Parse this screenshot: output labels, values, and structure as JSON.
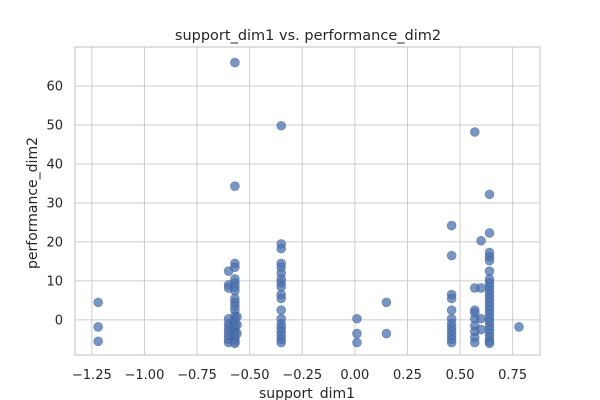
{
  "chart_data": {
    "type": "scatter",
    "title": "support_dim1 vs. performance_dim2",
    "xlabel": "support_dim1",
    "ylabel": "performance_dim2",
    "xlim": [
      -1.33,
      0.88
    ],
    "ylim": [
      -9,
      70
    ],
    "x_ticks": [
      -1.25,
      -1.0,
      -0.75,
      -0.5,
      -0.25,
      0.0,
      0.25,
      0.5,
      0.75
    ],
    "x_tick_labels": [
      "−1.25",
      "−1.00",
      "−0.75",
      "−0.50",
      "−0.25",
      "0.00",
      "0.25",
      "0.50",
      "0.75"
    ],
    "y_ticks": [
      0,
      10,
      20,
      30,
      40,
      50,
      60
    ],
    "y_tick_labels": [
      "0",
      "10",
      "20",
      "30",
      "40",
      "50",
      "60"
    ],
    "grid": true,
    "color": "#4c72b0",
    "points": [
      [
        -1.22,
        4.5
      ],
      [
        -1.22,
        -1.8
      ],
      [
        -1.22,
        -5.5
      ],
      [
        -0.6,
        12.5
      ],
      [
        -0.6,
        9.0
      ],
      [
        -0.6,
        8.2
      ],
      [
        -0.6,
        0.3
      ],
      [
        -0.6,
        -1.0
      ],
      [
        -0.6,
        -2.0
      ],
      [
        -0.6,
        -3.0
      ],
      [
        -0.6,
        -4.0
      ],
      [
        -0.6,
        -5.0
      ],
      [
        -0.6,
        -5.8
      ],
      [
        -0.57,
        66.0
      ],
      [
        -0.57,
        34.3
      ],
      [
        -0.57,
        14.5
      ],
      [
        -0.57,
        13.5
      ],
      [
        -0.57,
        10.5
      ],
      [
        -0.57,
        9.5
      ],
      [
        -0.57,
        8.5
      ],
      [
        -0.57,
        7.5
      ],
      [
        -0.57,
        5.5
      ],
      [
        -0.57,
        4.5
      ],
      [
        -0.57,
        3.5
      ],
      [
        -0.57,
        2.5
      ],
      [
        -0.57,
        1.0
      ],
      [
        -0.57,
        0.2
      ],
      [
        -0.57,
        -0.8
      ],
      [
        -0.57,
        -1.6
      ],
      [
        -0.57,
        -2.5
      ],
      [
        -0.57,
        -3.2
      ],
      [
        -0.57,
        -4.0
      ],
      [
        -0.57,
        -4.8
      ],
      [
        -0.57,
        -5.6
      ],
      [
        -0.57,
        -6.0
      ],
      [
        -0.56,
        0.8
      ],
      [
        -0.56,
        -1.2
      ],
      [
        -0.56,
        -3.5
      ],
      [
        -0.35,
        49.8
      ],
      [
        -0.35,
        19.5
      ],
      [
        -0.35,
        18.3
      ],
      [
        -0.35,
        14.5
      ],
      [
        -0.35,
        13.5
      ],
      [
        -0.35,
        12.0
      ],
      [
        -0.35,
        10.5
      ],
      [
        -0.35,
        9.5
      ],
      [
        -0.35,
        8.5
      ],
      [
        -0.35,
        6.5
      ],
      [
        -0.35,
        5.5
      ],
      [
        -0.35,
        2.5
      ],
      [
        -0.35,
        0.3
      ],
      [
        -0.35,
        -1.0
      ],
      [
        -0.35,
        -2.0
      ],
      [
        -0.35,
        -3.0
      ],
      [
        -0.35,
        -4.0
      ],
      [
        -0.35,
        -5.0
      ],
      [
        -0.35,
        -5.8
      ],
      [
        0.01,
        0.3
      ],
      [
        0.01,
        -3.5
      ],
      [
        0.01,
        -5.8
      ],
      [
        0.15,
        4.5
      ],
      [
        0.15,
        -3.5
      ],
      [
        0.46,
        24.2
      ],
      [
        0.46,
        16.5
      ],
      [
        0.46,
        6.5
      ],
      [
        0.46,
        5.5
      ],
      [
        0.46,
        2.5
      ],
      [
        0.46,
        0.3
      ],
      [
        0.46,
        -1.0
      ],
      [
        0.46,
        -2.0
      ],
      [
        0.46,
        -3.0
      ],
      [
        0.46,
        -4.0
      ],
      [
        0.46,
        -5.0
      ],
      [
        0.46,
        -5.8
      ],
      [
        0.57,
        48.2
      ],
      [
        0.57,
        8.2
      ],
      [
        0.57,
        2.5
      ],
      [
        0.57,
        1.8
      ],
      [
        0.57,
        0.3
      ],
      [
        0.57,
        -1.5
      ],
      [
        0.57,
        -3.0
      ],
      [
        0.57,
        -4.5
      ],
      [
        0.57,
        -5.8
      ],
      [
        0.6,
        20.3
      ],
      [
        0.6,
        8.2
      ],
      [
        0.6,
        0.3
      ],
      [
        0.6,
        -2.5
      ],
      [
        0.64,
        32.2
      ],
      [
        0.64,
        22.3
      ],
      [
        0.64,
        17.3
      ],
      [
        0.64,
        16.2
      ],
      [
        0.64,
        15.2
      ],
      [
        0.64,
        12.5
      ],
      [
        0.64,
        10.5
      ],
      [
        0.64,
        9.5
      ],
      [
        0.64,
        8.5
      ],
      [
        0.64,
        7.5
      ],
      [
        0.64,
        6.5
      ],
      [
        0.64,
        5.5
      ],
      [
        0.64,
        4.5
      ],
      [
        0.64,
        3.5
      ],
      [
        0.64,
        2.5
      ],
      [
        0.64,
        1.5
      ],
      [
        0.64,
        0.5
      ],
      [
        0.64,
        -0.5
      ],
      [
        0.64,
        -1.5
      ],
      [
        0.64,
        -2.5
      ],
      [
        0.64,
        -3.5
      ],
      [
        0.64,
        -4.5
      ],
      [
        0.64,
        -5.5
      ],
      [
        0.64,
        -6.0
      ],
      [
        0.78,
        -1.8
      ]
    ]
  }
}
